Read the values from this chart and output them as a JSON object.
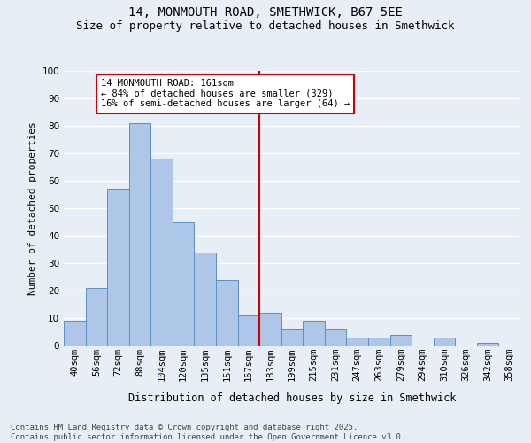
{
  "title1": "14, MONMOUTH ROAD, SMETHWICK, B67 5EE",
  "title2": "Size of property relative to detached houses in Smethwick",
  "xlabel": "Distribution of detached houses by size in Smethwick",
  "ylabel": "Number of detached properties",
  "categories": [
    "40sqm",
    "56sqm",
    "72sqm",
    "88sqm",
    "104sqm",
    "120sqm",
    "135sqm",
    "151sqm",
    "167sqm",
    "183sqm",
    "199sqm",
    "215sqm",
    "231sqm",
    "247sqm",
    "263sqm",
    "279sqm",
    "294sqm",
    "310sqm",
    "326sqm",
    "342sqm",
    "358sqm"
  ],
  "values": [
    9,
    21,
    57,
    81,
    68,
    45,
    34,
    24,
    11,
    12,
    6,
    9,
    6,
    3,
    3,
    4,
    0,
    3,
    0,
    1,
    0
  ],
  "bar_color": "#aec6e8",
  "bar_edge_color": "#5a8fc2",
  "background_color": "#e8eef5",
  "grid_color": "#ffffff",
  "vline_x": 8.5,
  "vline_color": "#cc0000",
  "annotation_text": "14 MONMOUTH ROAD: 161sqm\n← 84% of detached houses are smaller (329)\n16% of semi-detached houses are larger (64) →",
  "annotation_box_color": "#ffffff",
  "annotation_box_edge_color": "#cc0000",
  "footer_text": "Contains HM Land Registry data © Crown copyright and database right 2025.\nContains public sector information licensed under the Open Government Licence v3.0.",
  "ylim": [
    0,
    100
  ],
  "title1_fontsize": 10,
  "title2_fontsize": 9,
  "xlabel_fontsize": 8.5,
  "ylabel_fontsize": 8,
  "tick_fontsize": 7.5,
  "annotation_fontsize": 7.5,
  "footer_fontsize": 6.5
}
